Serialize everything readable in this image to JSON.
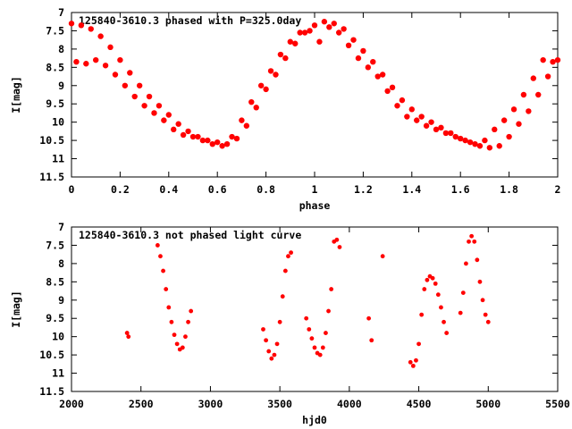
{
  "chart_data": [
    {
      "type": "scatter",
      "title": "125840-3610.3 phased with P=325.0day",
      "xlabel": "phase",
      "ylabel": "I[mag]",
      "xlim": [
        0,
        2
      ],
      "ylim": [
        11.5,
        7
      ],
      "y_inverted": true,
      "grid": false,
      "legend": "none",
      "marker_color": "#ff0000",
      "x_ticks": [
        "0",
        "0.2",
        "0.4",
        "0.6",
        "0.8",
        "1",
        "1.2",
        "1.4",
        "1.6",
        "1.8",
        "2"
      ],
      "y_ticks": [
        "7",
        "7.5",
        "8",
        "8.5",
        "9",
        "9.5",
        "10",
        "10.5",
        "11",
        "11.5"
      ],
      "x_tick_values": [
        0,
        0.2,
        0.4,
        0.6,
        0.8,
        1,
        1.2,
        1.4,
        1.6,
        1.8,
        2
      ],
      "y_tick_values": [
        7,
        7.5,
        8,
        8.5,
        9,
        9.5,
        10,
        10.5,
        11,
        11.5
      ],
      "series": [
        {
          "x": [
            0.0,
            0.04,
            0.08,
            0.12,
            0.16,
            0.2,
            0.24,
            0.28,
            0.32,
            0.36,
            0.4,
            0.44,
            0.48,
            0.52,
            0.56,
            0.6,
            0.64,
            0.68,
            0.72,
            0.76,
            0.8,
            0.84,
            0.88,
            0.92,
            0.96,
            1.0,
            1.04,
            1.08,
            1.12,
            1.16,
            1.2,
            1.24,
            1.28,
            1.32,
            1.36,
            1.4,
            1.44,
            1.48,
            1.52,
            1.56,
            1.6,
            1.64,
            1.68,
            1.72,
            1.76,
            1.8,
            1.84,
            1.88,
            1.92,
            1.96,
            2.0,
            0.02,
            0.06,
            0.1,
            0.14,
            0.18,
            0.22,
            0.26,
            0.3,
            0.34,
            0.38,
            0.42,
            0.46,
            0.5,
            0.54,
            0.58,
            0.62,
            0.66,
            0.7,
            0.74,
            0.78,
            0.82,
            0.86,
            0.9,
            0.94,
            0.98,
            1.02,
            1.06,
            1.1,
            1.14,
            1.18,
            1.22,
            1.26,
            1.3,
            1.34,
            1.38,
            1.42,
            1.46,
            1.5,
            1.54,
            1.58,
            1.62,
            1.66,
            1.7,
            1.74,
            1.78,
            1.82,
            1.86,
            1.9,
            1.94,
            1.98
          ],
          "y": [
            7.3,
            7.35,
            7.45,
            7.65,
            7.95,
            8.3,
            8.65,
            9.0,
            9.3,
            9.55,
            9.8,
            10.05,
            10.25,
            10.4,
            10.5,
            10.55,
            10.6,
            10.45,
            10.1,
            9.6,
            9.1,
            8.7,
            8.25,
            7.85,
            7.55,
            7.35,
            7.25,
            7.3,
            7.45,
            7.75,
            8.05,
            8.35,
            8.7,
            9.05,
            9.4,
            9.65,
            9.85,
            10.0,
            10.15,
            10.3,
            10.45,
            10.55,
            10.65,
            10.7,
            10.65,
            10.4,
            10.05,
            9.7,
            9.25,
            8.75,
            8.3,
            8.35,
            8.4,
            8.3,
            8.45,
            8.7,
            9.0,
            9.3,
            9.55,
            9.75,
            9.95,
            10.2,
            10.35,
            10.4,
            10.5,
            10.6,
            10.65,
            10.4,
            9.95,
            9.45,
            9.0,
            8.6,
            8.15,
            7.8,
            7.55,
            7.5,
            7.8,
            7.4,
            7.55,
            7.9,
            8.25,
            8.5,
            8.75,
            9.15,
            9.55,
            9.85,
            9.95,
            10.1,
            10.2,
            10.3,
            10.4,
            10.5,
            10.6,
            10.5,
            10.2,
            9.95,
            9.65,
            9.25,
            8.8,
            8.3,
            8.35
          ]
        }
      ]
    },
    {
      "type": "scatter",
      "title": "125840-3610.3 not phased light curve",
      "xlabel": "hjd0",
      "ylabel": "I[mag]",
      "xlim": [
        2000,
        5500
      ],
      "ylim": [
        11.5,
        7
      ],
      "y_inverted": true,
      "grid": false,
      "legend": "none",
      "marker_color": "#ff0000",
      "x_ticks": [
        "2000",
        "2500",
        "3000",
        "3500",
        "4000",
        "4500",
        "5000",
        "5500"
      ],
      "y_ticks": [
        "7",
        "7.5",
        "8",
        "8.5",
        "9",
        "9.5",
        "10",
        "10.5",
        "11",
        "11.5"
      ],
      "x_tick_values": [
        2000,
        2500,
        3000,
        3500,
        4000,
        4500,
        5000,
        5500
      ],
      "y_tick_values": [
        7,
        7.5,
        8,
        8.5,
        9,
        9.5,
        10,
        10.5,
        11,
        11.5
      ],
      "series": [
        {
          "x": [
            2400,
            2410,
            2620,
            2640,
            2660,
            2680,
            2700,
            2720,
            2740,
            2760,
            2780,
            2800,
            2820,
            2840,
            2860,
            3380,
            3400,
            3420,
            3440,
            3460,
            3480,
            3500,
            3520,
            3540,
            3560,
            3580,
            3690,
            3710,
            3730,
            3750,
            3770,
            3790,
            3810,
            3830,
            3850,
            3870,
            3890,
            3910,
            3930,
            4140,
            4160,
            4240,
            4440,
            4460,
            4480,
            4500,
            4520,
            4540,
            4560,
            4580,
            4600,
            4620,
            4640,
            4660,
            4680,
            4700,
            4800,
            4820,
            4840,
            4860,
            4880,
            4900,
            4920,
            4940,
            4960,
            4980,
            5000
          ],
          "y": [
            9.9,
            10.0,
            7.5,
            7.8,
            8.2,
            8.7,
            9.2,
            9.6,
            9.95,
            10.2,
            10.35,
            10.3,
            10.0,
            9.6,
            9.3,
            9.8,
            10.1,
            10.4,
            10.6,
            10.5,
            10.2,
            9.6,
            8.9,
            8.2,
            7.8,
            7.7,
            9.5,
            9.8,
            10.05,
            10.3,
            10.45,
            10.5,
            10.3,
            9.9,
            9.3,
            8.7,
            7.4,
            7.35,
            7.55,
            9.5,
            10.1,
            7.8,
            10.7,
            10.8,
            10.65,
            10.2,
            9.4,
            8.7,
            8.45,
            8.35,
            8.4,
            8.55,
            8.85,
            9.2,
            9.6,
            9.9,
            9.35,
            8.8,
            8.0,
            7.4,
            7.25,
            7.4,
            7.9,
            8.5,
            9.0,
            9.4,
            9.6
          ]
        }
      ]
    }
  ]
}
